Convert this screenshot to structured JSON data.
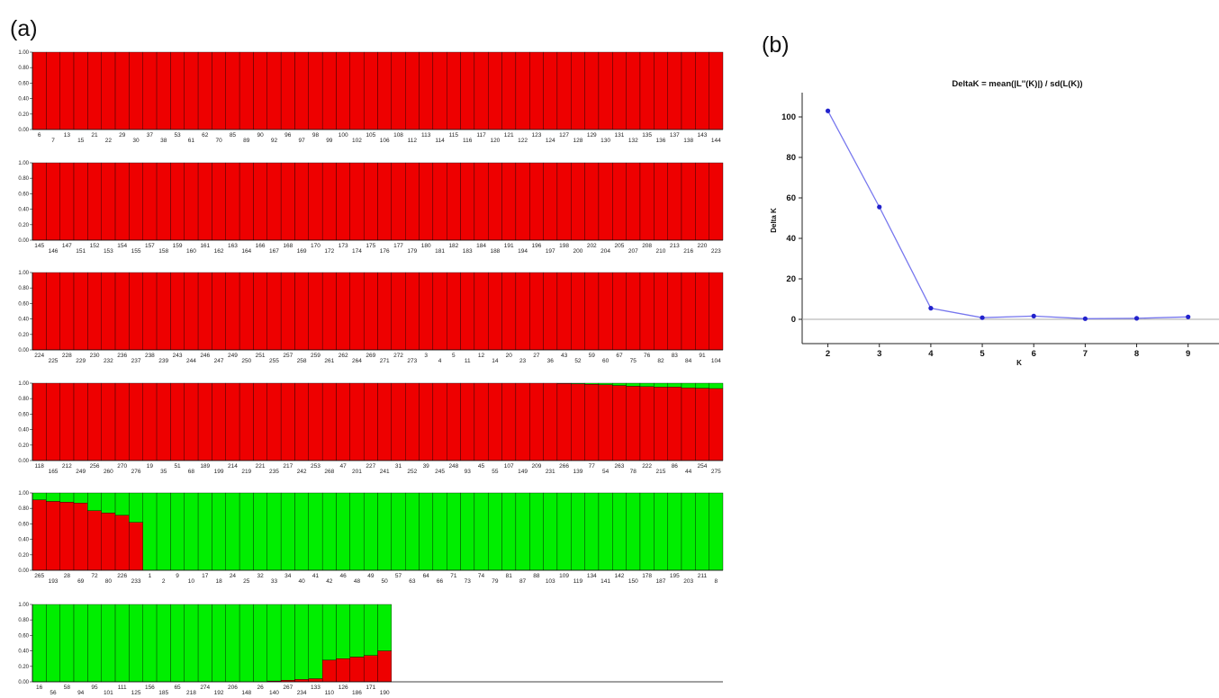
{
  "panel_a_label": "(a)",
  "panel_b_label": "(b)",
  "colors": {
    "cluster1": "#ee0000",
    "cluster2": "#00ee00",
    "deltak_line": "#7777ee",
    "deltak_point": "#2222cc"
  },
  "chart_data": [
    {
      "type": "bar",
      "subtype": "stacked-structure-barplot",
      "yticks": [
        "0.00",
        "0.20",
        "0.40",
        "0.60",
        "0.80",
        "1.00"
      ],
      "ylim": [
        0,
        1
      ],
      "series_colors": [
        "#ee0000",
        "#00ee00"
      ],
      "rows": [
        {
          "labels": [
            "6",
            "7",
            "13",
            "15",
            "21",
            "22",
            "29",
            "30",
            "37",
            "38",
            "53",
            "61",
            "62",
            "70",
            "85",
            "89",
            "90",
            "92",
            "96",
            "97",
            "98",
            "99",
            "100",
            "102",
            "105",
            "106",
            "108",
            "112",
            "113",
            "114",
            "115",
            "116",
            "117",
            "120",
            "121",
            "122",
            "123",
            "124",
            "127",
            "128",
            "129",
            "130",
            "131",
            "132",
            "135",
            "136",
            "137",
            "138",
            "143",
            "144"
          ],
          "red": [
            1,
            1,
            1,
            1,
            1,
            1,
            1,
            1,
            1,
            1,
            1,
            1,
            1,
            1,
            1,
            1,
            1,
            1,
            1,
            1,
            1,
            1,
            1,
            1,
            1,
            1,
            1,
            1,
            1,
            1,
            1,
            1,
            1,
            1,
            1,
            1,
            1,
            1,
            1,
            1,
            1,
            1,
            1,
            1,
            1,
            1,
            1,
            1,
            1,
            1
          ]
        },
        {
          "labels": [
            "145",
            "146",
            "147",
            "151",
            "152",
            "153",
            "154",
            "155",
            "157",
            "158",
            "159",
            "160",
            "161",
            "162",
            "163",
            "164",
            "166",
            "167",
            "168",
            "169",
            "170",
            "172",
            "173",
            "174",
            "175",
            "176",
            "177",
            "179",
            "180",
            "181",
            "182",
            "183",
            "184",
            "188",
            "191",
            "194",
            "196",
            "197",
            "198",
            "200",
            "202",
            "204",
            "205",
            "207",
            "208",
            "210",
            "213",
            "216",
            "220",
            "223"
          ],
          "red": [
            1,
            1,
            1,
            1,
            1,
            1,
            1,
            1,
            1,
            1,
            1,
            1,
            1,
            1,
            1,
            1,
            1,
            1,
            1,
            1,
            1,
            1,
            1,
            1,
            1,
            1,
            1,
            1,
            1,
            1,
            1,
            1,
            1,
            1,
            1,
            1,
            1,
            1,
            1,
            1,
            1,
            1,
            1,
            1,
            1,
            1,
            1,
            1,
            1,
            1
          ]
        },
        {
          "labels": [
            "224",
            "225",
            "228",
            "229",
            "230",
            "232",
            "236",
            "237",
            "238",
            "239",
            "243",
            "244",
            "246",
            "247",
            "249",
            "250",
            "251",
            "255",
            "257",
            "258",
            "259",
            "261",
            "262",
            "264",
            "269",
            "271",
            "272",
            "273",
            "3",
            "4",
            "5",
            "11",
            "12",
            "14",
            "20",
            "23",
            "27",
            "36",
            "43",
            "52",
            "59",
            "60",
            "67",
            "75",
            "76",
            "82",
            "83",
            "84",
            "91",
            "104"
          ],
          "red": [
            1,
            1,
            1,
            1,
            1,
            1,
            1,
            1,
            1,
            1,
            1,
            1,
            1,
            1,
            1,
            1,
            1,
            1,
            1,
            1,
            1,
            1,
            1,
            1,
            1,
            1,
            1,
            1,
            1,
            1,
            1,
            1,
            1,
            1,
            1,
            1,
            1,
            1,
            1,
            1,
            1,
            1,
            1,
            1,
            1,
            1,
            1,
            1,
            1,
            1
          ]
        },
        {
          "labels": [
            "118",
            "165",
            "212",
            "249",
            "256",
            "260",
            "270",
            "276",
            "19",
            "35",
            "51",
            "68",
            "189",
            "199",
            "214",
            "219",
            "221",
            "235",
            "217",
            "242",
            "253",
            "268",
            "47",
            "201",
            "227",
            "241",
            "31",
            "252",
            "39",
            "245",
            "248",
            "93",
            "45",
            "55",
            "107",
            "149",
            "209",
            "231",
            "266",
            "139",
            "77",
            "54",
            "263",
            "78",
            "222",
            "215",
            "86",
            "44",
            "254",
            "275"
          ],
          "red": [
            1,
            1,
            1,
            1,
            1,
            1,
            1,
            1,
            1,
            1,
            1,
            1,
            1,
            1,
            1,
            1,
            1,
            1,
            1,
            1,
            1,
            1,
            1,
            1,
            1,
            1,
            1,
            1,
            1,
            1,
            1,
            1,
            1,
            1,
            1,
            1,
            1,
            1,
            0.995,
            0.99,
            0.985,
            0.98,
            0.97,
            0.96,
            0.955,
            0.95,
            0.95,
            0.94,
            0.935,
            0.93
          ]
        },
        {
          "labels": [
            "265",
            "193",
            "28",
            "69",
            "72",
            "80",
            "226",
            "233",
            "1",
            "2",
            "9",
            "10",
            "17",
            "18",
            "24",
            "25",
            "32",
            "33",
            "34",
            "40",
            "41",
            "42",
            "46",
            "48",
            "49",
            "50",
            "57",
            "63",
            "64",
            "66",
            "71",
            "73",
            "74",
            "79",
            "81",
            "87",
            "88",
            "103",
            "109",
            "119",
            "134",
            "141",
            "142",
            "150",
            "178",
            "187",
            "195",
            "203",
            "211",
            "8"
          ],
          "red": [
            0.91,
            0.89,
            0.88,
            0.87,
            0.77,
            0.74,
            0.71,
            0.62,
            0,
            0,
            0,
            0,
            0,
            0,
            0,
            0,
            0,
            0,
            0,
            0,
            0,
            0,
            0,
            0,
            0,
            0,
            0,
            0,
            0,
            0,
            0,
            0,
            0,
            0,
            0,
            0,
            0,
            0,
            0,
            0,
            0,
            0,
            0,
            0,
            0,
            0,
            0,
            0,
            0,
            0
          ]
        },
        {
          "labels": [
            "16",
            "56",
            "58",
            "94",
            "95",
            "101",
            "111",
            "125",
            "156",
            "185",
            "65",
            "218",
            "274",
            "192",
            "206",
            "148",
            "26",
            "140",
            "267",
            "234",
            "133",
            "110",
            "126",
            "186",
            "171",
            "190"
          ],
          "red": [
            0,
            0,
            0,
            0,
            0,
            0,
            0,
            0,
            0,
            0,
            0,
            0,
            0,
            0,
            0,
            0,
            0,
            0.01,
            0.02,
            0.03,
            0.04,
            0.28,
            0.3,
            0.32,
            0.34,
            0.4
          ]
        }
      ]
    },
    {
      "type": "line",
      "title": "DeltaK = mean(|L''(K)|) / sd(L(K))",
      "xlabel": "K",
      "ylabel": "Delta K",
      "x": [
        2,
        3,
        4,
        5,
        6,
        7,
        8,
        9
      ],
      "y": [
        103,
        55.5,
        5.5,
        0.8,
        1.6,
        0.3,
        0.5,
        1.2
      ],
      "xlim": [
        1.5,
        9.6
      ],
      "ylim": [
        -12,
        112
      ],
      "yticks": [
        0,
        20,
        40,
        60,
        80,
        100
      ],
      "xticks": [
        2,
        3,
        4,
        5,
        6,
        7,
        8,
        9
      ],
      "zero_line": true,
      "grid": false
    }
  ]
}
